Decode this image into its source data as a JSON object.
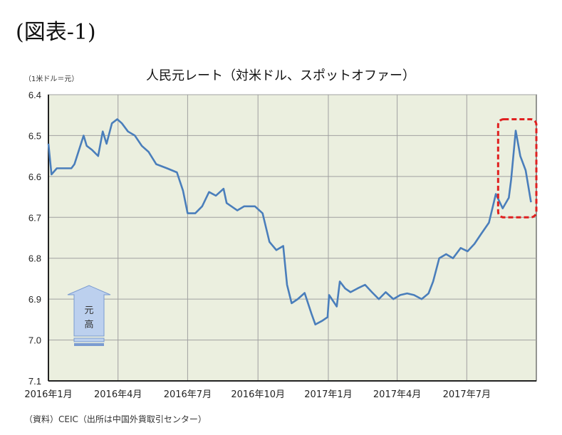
{
  "figure_label": "(図表-1)",
  "chart_data": {
    "type": "line",
    "title": "人民元レート（対米ドル、スポットオファー）",
    "unit_label": "（1米ドル＝元）",
    "ylim": [
      6.4,
      7.1
    ],
    "y_inverted": true,
    "yticks": [
      "6.4",
      "6.5",
      "6.6",
      "6.7",
      "6.8",
      "6.9",
      "7.0",
      "7.1"
    ],
    "xlim": [
      "2016-01-01",
      "2017-09-30"
    ],
    "xticks": [
      {
        "date": "2016-01-01",
        "label": "2016年1月"
      },
      {
        "date": "2016-04-01",
        "label": "2016年4月"
      },
      {
        "date": "2016-07-01",
        "label": "2016年7月"
      },
      {
        "date": "2016-10-01",
        "label": "2016年10月"
      },
      {
        "date": "2017-01-01",
        "label": "2017年1月"
      },
      {
        "date": "2017-04-01",
        "label": "2017年4月"
      },
      {
        "date": "2017-07-01",
        "label": "2017年7月"
      }
    ],
    "grid": true,
    "plot_background": "#ebefdf",
    "line_color": "#4a7ebb",
    "series": [
      {
        "x": [
          "2016-01-01",
          "2016-01-05",
          "2016-01-12",
          "2016-01-31",
          "2016-02-04",
          "2016-02-16",
          "2016-02-20",
          "2016-02-27",
          "2016-03-06",
          "2016-03-12",
          "2016-03-17",
          "2016-03-24",
          "2016-03-31",
          "2016-04-06",
          "2016-04-14",
          "2016-04-23",
          "2016-05-02",
          "2016-05-11",
          "2016-05-21",
          "2016-06-04",
          "2016-06-17",
          "2016-06-25",
          "2016-07-01",
          "2016-07-11",
          "2016-07-20",
          "2016-07-29",
          "2016-08-07",
          "2016-08-17",
          "2016-08-21",
          "2016-09-04",
          "2016-09-13",
          "2016-09-27",
          "2016-10-07",
          "2016-10-16",
          "2016-10-25",
          "2016-11-03",
          "2016-11-08",
          "2016-11-14",
          "2016-11-22",
          "2016-12-01",
          "2016-12-10",
          "2016-12-15",
          "2016-12-24",
          "2016-12-31",
          "2017-01-02",
          "2017-01-12",
          "2017-01-16",
          "2017-01-23",
          "2017-01-30",
          "2017-02-08",
          "2017-02-18",
          "2017-02-27",
          "2017-03-08",
          "2017-03-17",
          "2017-03-27",
          "2017-04-05",
          "2017-04-14",
          "2017-04-23",
          "2017-05-03",
          "2017-05-12",
          "2017-05-18",
          "2017-05-26",
          "2017-06-04",
          "2017-06-13",
          "2017-06-23",
          "2017-07-02",
          "2017-07-11",
          "2017-07-20",
          "2017-07-30",
          "2017-08-08",
          "2017-08-17",
          "2017-08-25",
          "2017-08-28",
          "2017-09-03",
          "2017-09-09",
          "2017-09-16",
          "2017-09-23"
        ],
        "y": [
          6.52,
          6.595,
          6.58,
          6.58,
          6.57,
          6.5,
          6.525,
          6.535,
          6.55,
          6.49,
          6.52,
          6.47,
          6.46,
          6.47,
          6.49,
          6.5,
          6.525,
          6.54,
          6.57,
          6.58,
          6.59,
          6.635,
          6.69,
          6.69,
          6.673,
          6.638,
          6.647,
          6.63,
          6.665,
          6.683,
          6.673,
          6.673,
          6.69,
          6.76,
          6.78,
          6.77,
          6.865,
          6.91,
          6.9,
          6.885,
          6.936,
          6.962,
          6.953,
          6.944,
          6.89,
          6.918,
          6.857,
          6.874,
          6.883,
          6.874,
          6.865,
          6.883,
          6.9,
          6.883,
          6.9,
          6.89,
          6.886,
          6.89,
          6.9,
          6.886,
          6.857,
          6.8,
          6.79,
          6.8,
          6.775,
          6.783,
          6.765,
          6.74,
          6.713,
          6.643,
          6.678,
          6.652,
          6.608,
          6.488,
          6.55,
          6.585,
          6.663
        ]
      }
    ],
    "annotations": {
      "arrow_text": [
        "元",
        "高"
      ],
      "highlight_box": {
        "x_range": [
          "2017-08-11",
          "2017-09-30"
        ],
        "y_range": [
          6.46,
          6.7
        ],
        "color": "#e02020",
        "style": "dashed"
      }
    },
    "source": "（資料）CEIC（出所は中国外貨取引センター）"
  }
}
